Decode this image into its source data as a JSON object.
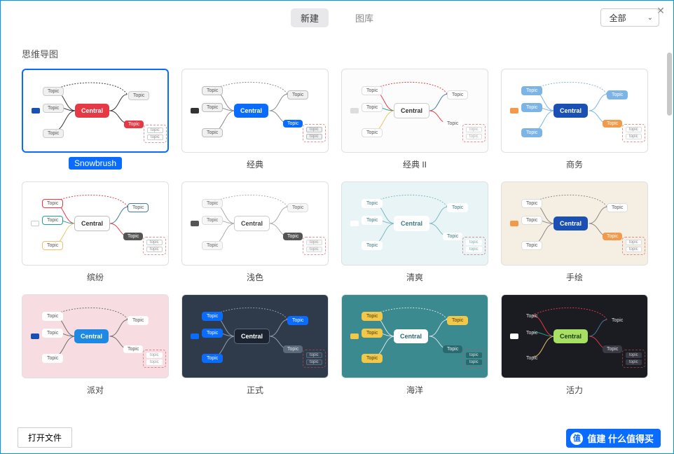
{
  "window": {
    "close_glyph": "✕"
  },
  "tabs": {
    "new": "新建",
    "library": "图库"
  },
  "filter": {
    "label": "全部",
    "chev": "⌄"
  },
  "section": {
    "title": "思维导图"
  },
  "nodes": {
    "central": "Central",
    "topic": "Topic",
    "sub": "topic"
  },
  "templates": [
    {
      "id": "snowbrush",
      "label": "Snowbrush",
      "selected": true,
      "bg": "#ffffff",
      "anchor": "#1a4fb3",
      "central_bg": "#e63946",
      "central_fg": "#ffffff",
      "topic_bg": "#f0f0f0",
      "topic_fg": "#555",
      "topic_border": "#cccccc",
      "right_topic_bg": "#e63946",
      "right_topic_fg": "#ffffff",
      "sub_bg": "#ffffff",
      "sub_fg": "#888",
      "sub_border": "#cccccc",
      "line": "#333333"
    },
    {
      "id": "classic",
      "label": "经典",
      "selected": false,
      "bg": "#ffffff",
      "anchor": "#333333",
      "central_bg": "#0a6cff",
      "central_fg": "#ffffff",
      "topic_bg": "#f0f0f0",
      "topic_fg": "#555",
      "topic_border": "#bbbbbb",
      "right_topic_bg": "#0a6cff",
      "right_topic_fg": "#ffffff",
      "sub_bg": "#f0f0f0",
      "sub_fg": "#888",
      "sub_border": "#bbbbbb",
      "line": "#888888"
    },
    {
      "id": "classic2",
      "label": "经典 II",
      "selected": false,
      "bg": "#fcfcfc",
      "anchor": "#dddddd",
      "central_bg": "#ffffff",
      "central_fg": "#333333",
      "central_border": "#cccccc",
      "topic_bg": "#ffffff",
      "topic_fg": "#555",
      "topic_border": "#dddddd",
      "right_topic_bg": "#ffffff",
      "right_topic_fg": "#555",
      "sub_bg": "#ffffff",
      "sub_fg": "#aaa",
      "sub_border": "#dddddd",
      "line_colors": [
        "#e63946",
        "#2a9d8f",
        "#e9c46a",
        "#457b9d"
      ]
    },
    {
      "id": "business",
      "label": "商务",
      "selected": false,
      "bg": "#ffffff",
      "anchor": "#f2994a",
      "central_bg": "#1a4fb3",
      "central_fg": "#ffffff",
      "topic_bg": "#7db4e6",
      "topic_fg": "#ffffff",
      "topic_border": "#7db4e6",
      "right_topic_bg": "#f2994a",
      "right_topic_fg": "#ffffff",
      "sub_bg": "#ffffff",
      "sub_fg": "#888",
      "sub_border": "#dddddd",
      "line": "#7db4e6"
    },
    {
      "id": "colorful",
      "label": "缤纷",
      "selected": false,
      "bg": "#ffffff",
      "anchor": "#ffffff",
      "anchor_border": "#cccccc",
      "central_bg": "#ffffff",
      "central_fg": "#333333",
      "central_border": "#bbbbbb",
      "topic_bg": "#ffffff",
      "topic_fg": "#555",
      "topic_borders": [
        "#e63946",
        "#2a9d8f",
        "#e9c46a",
        "#457b9d"
      ],
      "right_topic_bg": "#555555",
      "right_topic_fg": "#ffffff",
      "sub_bg": "#ffffff",
      "sub_fg": "#888",
      "sub_border": "#cccccc",
      "line_colors": [
        "#e63946",
        "#2a9d8f",
        "#e9c46a",
        "#457b9d"
      ]
    },
    {
      "id": "light",
      "label": "浅色",
      "selected": false,
      "bg": "#ffffff",
      "anchor": "#555555",
      "central_bg": "#ffffff",
      "central_fg": "#444",
      "central_border": "#cccccc",
      "topic_bg": "#f6f6f6",
      "topic_fg": "#666",
      "topic_border": "#dddddd",
      "right_topic_bg": "#555555",
      "right_topic_fg": "#ffffff",
      "sub_bg": "#f6f6f6",
      "sub_fg": "#999",
      "sub_border": "#dddddd",
      "line": "#aaaaaa"
    },
    {
      "id": "fresh",
      "label": "清爽",
      "selected": false,
      "bg": "#e8f4f6",
      "anchor": "#ffffff",
      "central_bg": "#ffffff",
      "central_fg": "#3a7a82",
      "central_border": "#ffffff",
      "topic_bg": "#ffffff",
      "topic_fg": "#3a7a82",
      "topic_border": "#ffffff",
      "right_topic_bg": "#ffffff",
      "right_topic_fg": "#3a7a82",
      "sub_bg": "#ffffff",
      "sub_fg": "#7aa",
      "sub_border": "#ffffff",
      "line": "#7ab8c0"
    },
    {
      "id": "sketch",
      "label": "手绘",
      "selected": false,
      "bg": "#f5eee2",
      "anchor": "#f2994a",
      "central_bg": "#1a4fb3",
      "central_fg": "#ffffff",
      "topic_bg": "#ffffff",
      "topic_fg": "#555",
      "topic_border": "#dddddd",
      "right_topic_bg": "#f2994a",
      "right_topic_fg": "#ffffff",
      "sub_bg": "#ffffff",
      "sub_fg": "#888",
      "sub_border": "#dddddd",
      "line": "#888888"
    },
    {
      "id": "party",
      "label": "派对",
      "selected": false,
      "bg": "#f7dde1",
      "anchor": "#1a4fb3",
      "central_bg": "#1e88e5",
      "central_fg": "#ffffff",
      "topic_bg": "#ffffff",
      "topic_fg": "#555",
      "topic_border": "#ffffff",
      "right_topic_bg": "#ffffff",
      "right_topic_fg": "#555",
      "sub_bg": "#ffffff",
      "sub_fg": "#999",
      "sub_border": "#ffffff",
      "line": "#6b6b6b"
    },
    {
      "id": "formal",
      "label": "正式",
      "selected": false,
      "bg": "#2f3b4a",
      "anchor": "#0a6cff",
      "central_bg": "#1b2430",
      "central_fg": "#ffffff",
      "central_border": "#5a6a7a",
      "topic_bg": "#0a6cff",
      "topic_fg": "#ffffff",
      "topic_border": "#0a6cff",
      "right_topic_bg": "#5a6a7a",
      "right_topic_fg": "#e0e6ec",
      "sub_bg": "#3a4756",
      "sub_fg": "#cbd3db",
      "sub_border": "#5a6a7a",
      "line": "#8fa0b2"
    },
    {
      "id": "ocean",
      "label": "海洋",
      "selected": false,
      "bg": "#3a8a8f",
      "anchor": "#f2c84b",
      "central_bg": "#ffffff",
      "central_fg": "#2a6a6f",
      "topic_bg": "#f2c84b",
      "topic_fg": "#4a3a10",
      "topic_border": "#f2c84b",
      "right_topic_bg": "#2a6a6f",
      "right_topic_fg": "#e8f0f0",
      "sub_bg": "#2a6a6f",
      "sub_fg": "#d7e6e6",
      "sub_border": "#2a6a6f",
      "line": "#d7e6e6"
    },
    {
      "id": "vitality",
      "label": "活力",
      "selected": false,
      "bg": "#1b1b22",
      "anchor": "#ffffff",
      "central_bg": "#a8e063",
      "central_fg": "#1b3a10",
      "topic_bg": "transparent",
      "topic_fg": "#e0e0e0",
      "topic_border": "transparent",
      "right_topic_bg": "#3a3a44",
      "right_topic_fg": "#e0e0e0",
      "sub_bg": "#3a3a44",
      "sub_fg": "#c8c8c8",
      "sub_border": "#3a3a44",
      "line_colors": [
        "#e63946",
        "#2a9d8f",
        "#e9c46a",
        "#457b9d"
      ]
    }
  ],
  "footer": {
    "open_file": "打开文件",
    "watermark": "值建 什么值得买"
  }
}
